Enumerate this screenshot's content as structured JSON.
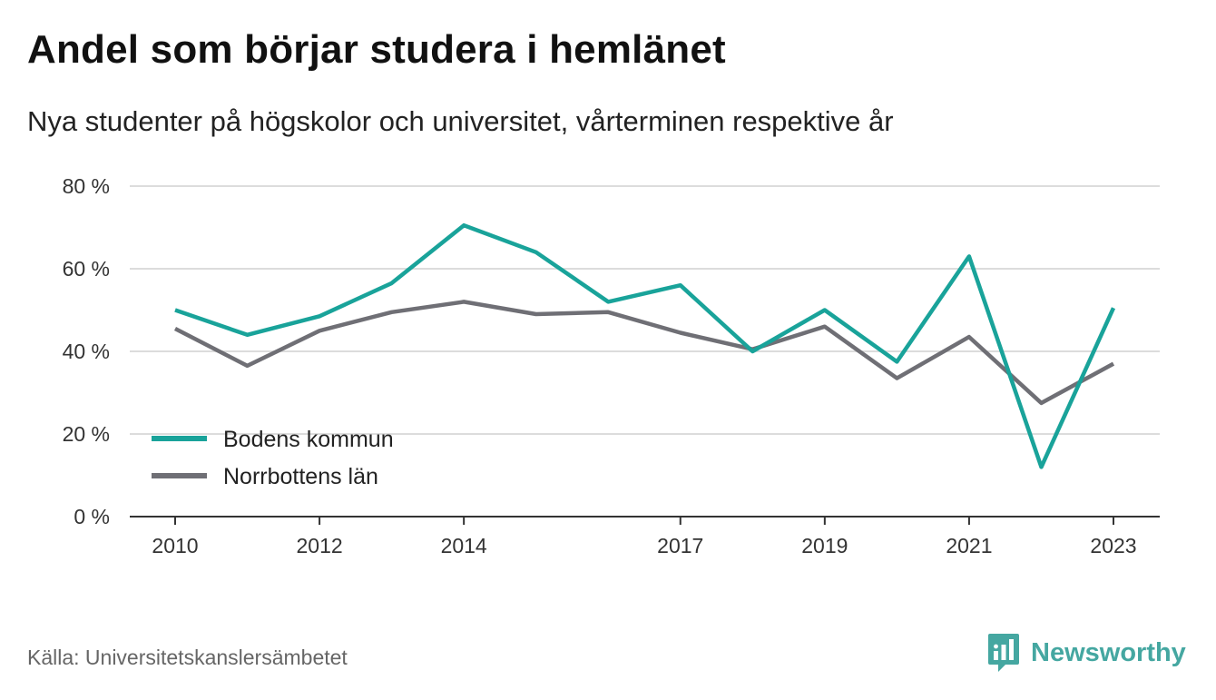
{
  "header": {
    "title": "Andel som börjar studera i hemlänet",
    "subtitle": "Nya studenter på högskolor och universitet, vårterminen respektive år"
  },
  "footer": {
    "source": "Källa: Universitetskanslersämbetet",
    "brand": "Newsworthy",
    "brand_icon": "bar-chart-speech-bubble-icon",
    "brand_color": "#45a7a1"
  },
  "chart_data": {
    "type": "line",
    "title": "Andel som börjar studera i hemlänet",
    "subtitle": "Nya studenter på högskolor och universitet, vårterminen respektive år",
    "xlabel": "",
    "ylabel": "",
    "x": [
      2010,
      2011,
      2012,
      2013,
      2014,
      2015,
      2016,
      2017,
      2018,
      2019,
      2020,
      2021,
      2022,
      2023
    ],
    "x_tick_values": [
      2010,
      2012,
      2014,
      2017,
      2019,
      2021,
      2023
    ],
    "x_tick_labels": [
      "2010",
      "2012",
      "2014",
      "2017",
      "2019",
      "2021",
      "2023"
    ],
    "ylim": [
      0,
      80
    ],
    "y_ticks": [
      0,
      20,
      40,
      60,
      80
    ],
    "y_tick_labels": [
      "0 %",
      "20 %",
      "40 %",
      "60 %",
      "80 %"
    ],
    "grid": true,
    "legend_position": "bottom-left",
    "series": [
      {
        "name": "Bodens kommun",
        "color": "#19a39a",
        "values": [
          50,
          44,
          48.5,
          56.5,
          70.5,
          64,
          52,
          56,
          40,
          50,
          37.5,
          63,
          12,
          50.5
        ]
      },
      {
        "name": "Norrbottens län",
        "color": "#6f6f75",
        "values": [
          45.5,
          36.5,
          45,
          49.5,
          52,
          49,
          49.5,
          44.5,
          40.5,
          46,
          33.5,
          43.5,
          27.5,
          37
        ]
      }
    ]
  }
}
